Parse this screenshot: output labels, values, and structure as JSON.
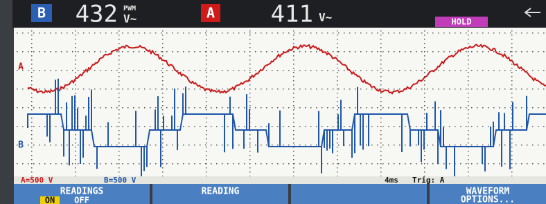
{
  "header": {
    "channel_b": "B",
    "reading_b": "432",
    "reading_b_mode": "PWM",
    "reading_b_unit": "V~",
    "channel_a": "A",
    "reading_a": "411",
    "reading_a_unit": "V~",
    "status": "HOLD"
  },
  "trace_markers": {
    "a": "A",
    "b": "B"
  },
  "status_bar": {
    "scale_a": "A=500 V",
    "scale_b": "B=500 V",
    "timebase": "4ms",
    "trigger": "Trig: A"
  },
  "softkeys": [
    {
      "label": "READINGS",
      "options": [
        "ON",
        "OFF"
      ]
    },
    {
      "label": "READING"
    },
    {
      "lines": [
        "WAVEFORM",
        "OPTIONS..."
      ]
    }
  ]
}
